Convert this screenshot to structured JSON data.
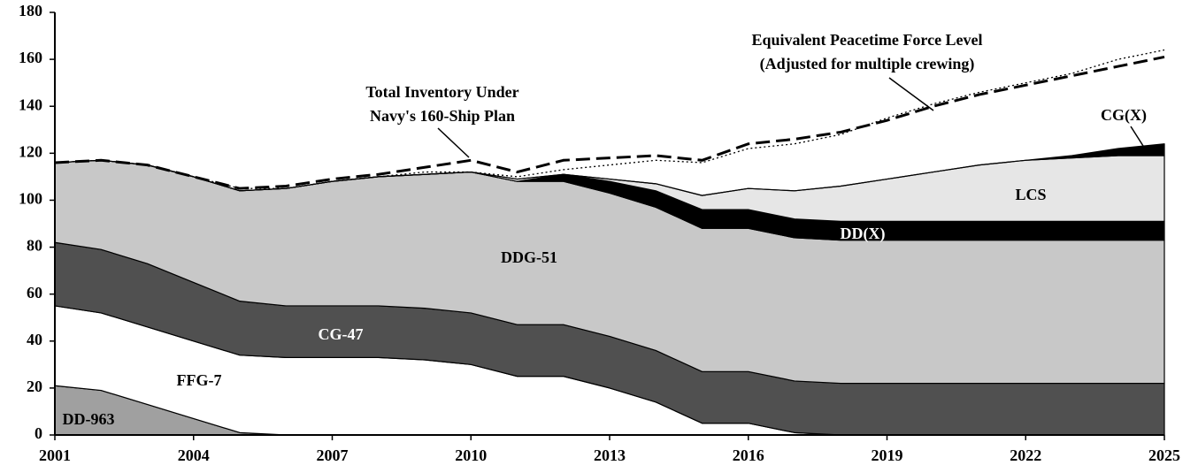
{
  "chart_data": {
    "type": "stacked_area",
    "x": [
      2001,
      2002,
      2003,
      2004,
      2005,
      2006,
      2007,
      2008,
      2009,
      2010,
      2011,
      2012,
      2013,
      2014,
      2015,
      2016,
      2017,
      2018,
      2019,
      2020,
      2021,
      2022,
      2023,
      2024,
      2025
    ],
    "series": [
      {
        "name": "DD-963",
        "color": "#a0a0a0",
        "values": [
          21,
          19,
          13,
          7,
          1,
          0,
          0,
          0,
          0,
          0,
          0,
          0,
          0,
          0,
          0,
          0,
          0,
          0,
          0,
          0,
          0,
          0,
          0,
          0,
          0
        ]
      },
      {
        "name": "FFG-7",
        "color": "#ffffff",
        "values": [
          34,
          33,
          33,
          33,
          33,
          33,
          33,
          33,
          32,
          30,
          25,
          25,
          20,
          14,
          5,
          5,
          1,
          0,
          0,
          0,
          0,
          0,
          0,
          0,
          0
        ]
      },
      {
        "name": "CG-47",
        "color": "#505050",
        "values": [
          27,
          27,
          27,
          25,
          23,
          22,
          22,
          22,
          22,
          22,
          22,
          22,
          22,
          22,
          22,
          22,
          22,
          22,
          22,
          22,
          22,
          22,
          22,
          22,
          22
        ]
      },
      {
        "name": "DDG-51",
        "color": "#c8c8c8",
        "values": [
          34,
          38,
          42,
          45,
          47,
          50,
          53,
          55,
          57,
          60,
          61,
          61,
          61,
          61,
          61,
          61,
          61,
          61,
          61,
          61,
          61,
          61,
          61,
          61,
          61
        ]
      },
      {
        "name": "DD(X)",
        "color": "#000000",
        "values": [
          0,
          0,
          0,
          0,
          0,
          0,
          0,
          0,
          0,
          0,
          0,
          3,
          5,
          7,
          8,
          8,
          8,
          8,
          8,
          8,
          8,
          8,
          8,
          8,
          8
        ]
      },
      {
        "name": "LCS",
        "color": "#e6e6e6",
        "values": [
          0,
          0,
          0,
          0,
          0,
          0,
          0,
          0,
          0,
          0,
          1,
          0,
          1,
          3,
          6,
          9,
          12,
          15,
          18,
          21,
          24,
          26,
          27,
          28,
          28
        ]
      },
      {
        "name": "CG(X)",
        "color": "#000000",
        "values": [
          0,
          0,
          0,
          0,
          0,
          0,
          0,
          0,
          0,
          0,
          0,
          0,
          0,
          0,
          0,
          0,
          0,
          0,
          0,
          0,
          0,
          0,
          1,
          3,
          5
        ]
      }
    ],
    "lines": [
      {
        "name": "Total Inventory Under Navy's 160-Ship Plan",
        "style": "dashed",
        "values": [
          116,
          117,
          115,
          110,
          105,
          106,
          109,
          111,
          114,
          117,
          112,
          117,
          118,
          119,
          117,
          124,
          126,
          129,
          134,
          140,
          145,
          149,
          153,
          157,
          161
        ]
      },
      {
        "name": "Equivalent Peacetime Force Level (Adjusted for multiple crewing)",
        "style": "dotted",
        "values": [
          116,
          117,
          115,
          110,
          105,
          105,
          108,
          110,
          112,
          112,
          110,
          113,
          115,
          117,
          116,
          122,
          124,
          128,
          135,
          141,
          146,
          150,
          154,
          160,
          164
        ]
      }
    ],
    "annotations": [
      [
        "Total Inventory Under",
        "Navy's 160-Ship Plan"
      ],
      [
        "Equivalent Peacetime Force Level",
        "(Adjusted for multiple crewing)"
      ]
    ],
    "xlim": [
      2001,
      2025
    ],
    "xticks": [
      2001,
      2004,
      2007,
      2010,
      2013,
      2016,
      2019,
      2022,
      2025
    ],
    "ylim": [
      0,
      180
    ],
    "yticks": [
      0,
      20,
      40,
      60,
      80,
      100,
      120,
      140,
      160,
      180
    ]
  }
}
